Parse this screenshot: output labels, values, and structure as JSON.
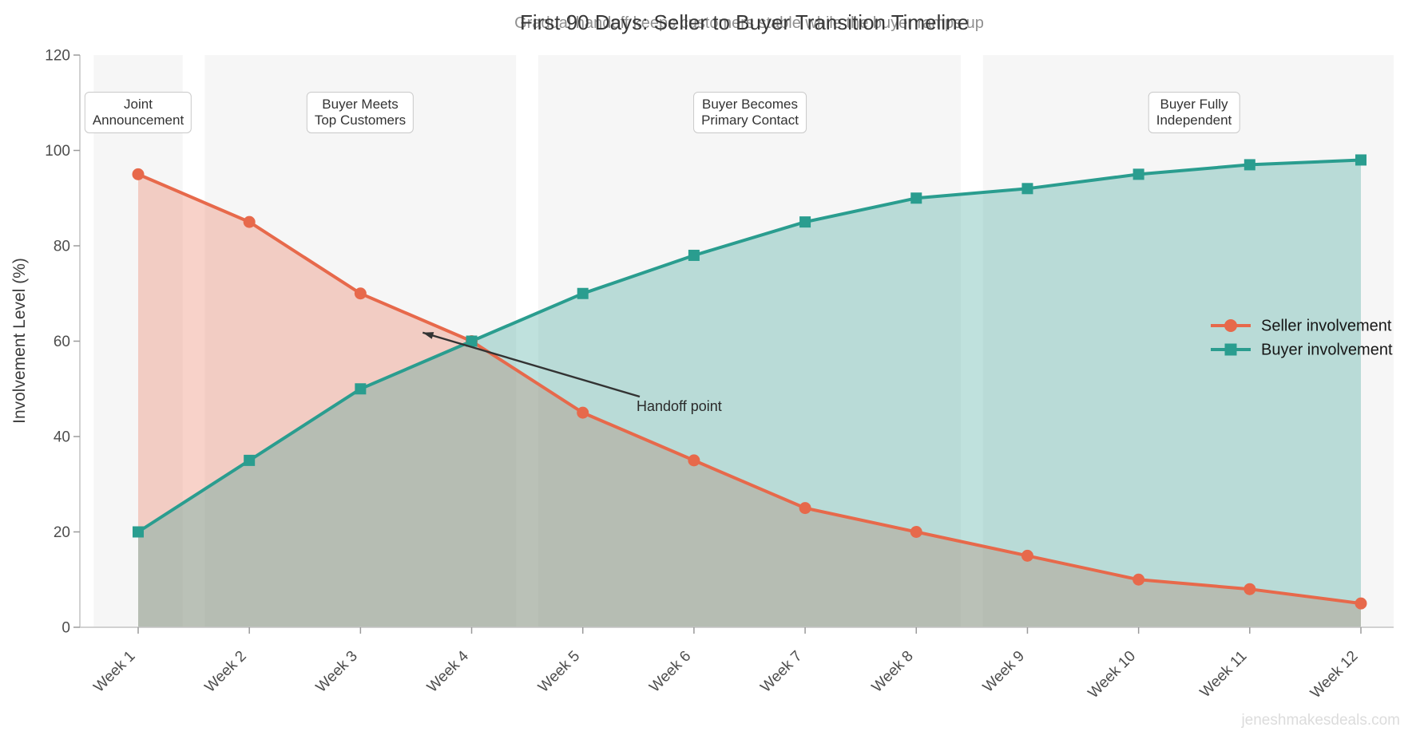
{
  "title": "First 90 Days: Seller to Buyer Transition Timeline",
  "subtitle": "Gradual handoff keeps customers stable while the buyer ramps up",
  "watermark": "jeneshmakesdeals.com",
  "chart_data": {
    "type": "line",
    "title": "First 90 Days: Seller to Buyer Transition Timeline",
    "subtitle": "Gradual handoff keeps customers stable while the buyer ramps up",
    "xlabel": "",
    "ylabel": "Involvement Level (%)",
    "categories": [
      "Week 1",
      "Week 2",
      "Week 3",
      "Week 4",
      "Week 5",
      "Week 6",
      "Week 7",
      "Week 8",
      "Week 9",
      "Week 10",
      "Week 11",
      "Week 12"
    ],
    "series": [
      {
        "name": "Seller involvement",
        "marker": "circle",
        "color": "#E7694B",
        "values": [
          95,
          85,
          70,
          60,
          45,
          35,
          25,
          20,
          15,
          10,
          8,
          5
        ]
      },
      {
        "name": "Buyer involvement",
        "marker": "square",
        "color": "#2A9D8F",
        "values": [
          20,
          35,
          50,
          60,
          70,
          78,
          85,
          90,
          92,
          95,
          97,
          98
        ]
      }
    ],
    "ylim": [
      0,
      120
    ],
    "yticks": [
      0,
      20,
      40,
      60,
      80,
      100,
      120
    ],
    "grid": false,
    "fill_to_zero_alpha": 0.3,
    "legend_position": "center-right",
    "phase_bands": [
      {
        "from_week": 0.6,
        "to_week": 1.4,
        "label": "Joint\nAnnouncement",
        "label_week": 1
      },
      {
        "from_week": 1.6,
        "to_week": 4.4,
        "label": "Buyer Meets\nTop Customers",
        "label_week": 3
      },
      {
        "from_week": 4.6,
        "to_week": 8.4,
        "label": "Buyer Becomes\nPrimary Contact",
        "label_week": 6.5
      },
      {
        "from_week": 8.6,
        "to_week": 12.4,
        "label": "Buyer Fully\nIndependent",
        "label_week": 10.5
      }
    ],
    "annotation": {
      "text": "Handoff point",
      "arrow_tip_week": 3.56,
      "arrow_tip_value": 61.8,
      "text_week": 5.49,
      "text_value": 46.5
    },
    "colors": {
      "band": "#F6F6F6",
      "spine": "#C4C4C4",
      "tick": "#9A9A9A",
      "tick_label": "#4D4D4D",
      "arrow": "#333333",
      "legend_text": "#161616"
    }
  }
}
